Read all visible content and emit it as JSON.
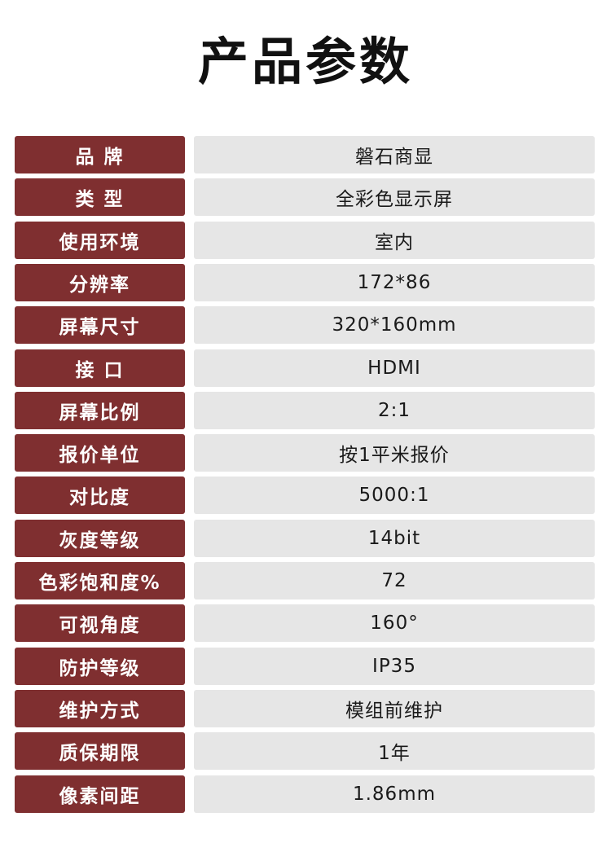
{
  "title": "产品参数",
  "colors": {
    "label_bg": "#7f2f30",
    "value_bg": "#e6e6e6"
  },
  "rows": [
    {
      "label": "品 牌",
      "value": "磐石商显"
    },
    {
      "label": "类 型",
      "value": "全彩色显示屏"
    },
    {
      "label": "使用环境",
      "value": "室内"
    },
    {
      "label": "分辨率",
      "value": "172*86"
    },
    {
      "label": "屏幕尺寸",
      "value": "320*160mm"
    },
    {
      "label": "接 口",
      "value": "HDMI"
    },
    {
      "label": "屏幕比例",
      "value": "2:1"
    },
    {
      "label": "报价单位",
      "value": "按1平米报价"
    },
    {
      "label": "对比度",
      "value": "5000:1"
    },
    {
      "label": "灰度等级",
      "value": "14bit"
    },
    {
      "label": "色彩饱和度%",
      "value": "72"
    },
    {
      "label": "可视角度",
      "value": "160°"
    },
    {
      "label": "防护等级",
      "value": "IP35"
    },
    {
      "label": "维护方式",
      "value": "模组前维护"
    },
    {
      "label": "质保期限",
      "value": "1年"
    },
    {
      "label": "像素间距",
      "value": "1.86mm"
    }
  ]
}
